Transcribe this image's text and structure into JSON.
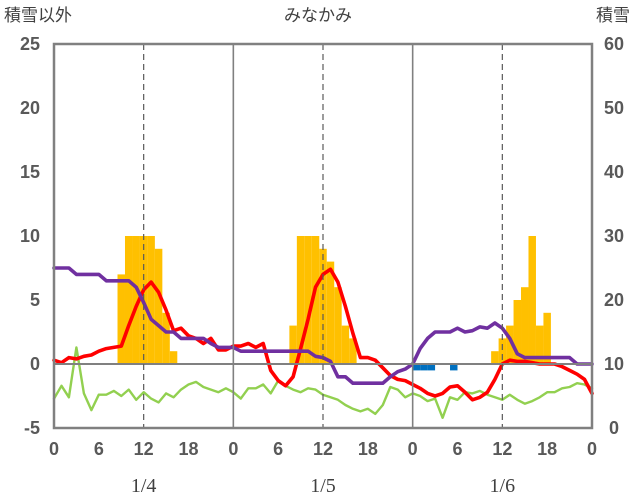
{
  "chart_data": {
    "type": "combo",
    "title": "みなかみ",
    "left_axis_label": "積雪以外",
    "right_axis_label": "積雪",
    "left_ylim": [
      -5,
      25
    ],
    "left_yticks": [
      "25",
      "20",
      "15",
      "10",
      "5",
      "0",
      "-5"
    ],
    "right_ylim": [
      0,
      60
    ],
    "right_yticks": [
      "60",
      "50",
      "40",
      "30",
      "20",
      "10",
      "0"
    ],
    "x_hours_total": 72,
    "x_ticks": [
      "0",
      "6",
      "12",
      "18",
      "0",
      "6",
      "12",
      "18",
      "0",
      "6",
      "12",
      "18",
      "0"
    ],
    "dates": [
      "1/4",
      "1/5",
      "1/6"
    ],
    "grid": "vertical dashed at 12:00 each day",
    "colors": {
      "bars_yellow": "#FFC000",
      "bars_blue": "#0070C0",
      "temperature": "#FF0000",
      "snow_depth": "#7030A0",
      "green_series": "#92D050"
    },
    "series": [
      {
        "color": "#FFC000",
        "axis": "left",
        "kind": "bar",
        "points": [
          [
            9,
            7
          ],
          [
            10,
            10
          ],
          [
            11,
            10
          ],
          [
            12,
            10
          ],
          [
            13,
            10
          ],
          [
            14,
            9
          ],
          [
            15,
            4
          ],
          [
            16,
            1
          ],
          [
            32,
            3
          ],
          [
            33,
            10
          ],
          [
            34,
            10
          ],
          [
            35,
            10
          ],
          [
            36,
            9
          ],
          [
            37,
            8
          ],
          [
            38,
            6
          ],
          [
            39,
            3
          ],
          [
            40,
            2
          ],
          [
            59,
            1
          ],
          [
            60,
            2
          ],
          [
            61,
            3
          ],
          [
            62,
            5
          ],
          [
            63,
            6
          ],
          [
            64,
            10
          ],
          [
            65,
            3
          ],
          [
            66,
            4
          ]
        ]
      },
      {
        "color": "#0070C0",
        "axis": "left",
        "kind": "bar",
        "points": [
          [
            48.5,
            -0.5
          ],
          [
            49.5,
            -0.5
          ],
          [
            50.5,
            -0.5
          ],
          [
            53.5,
            -0.5
          ]
        ]
      },
      {
        "color": "#FF0000",
        "axis": "left",
        "kind": "line",
        "x": [
          0,
          1,
          2,
          3,
          4,
          5,
          6,
          7,
          8,
          9,
          10,
          11,
          12,
          13,
          14,
          15,
          16,
          17,
          18,
          19,
          20,
          21,
          22,
          23,
          24,
          25,
          26,
          27,
          28,
          29,
          30,
          31,
          32,
          33,
          34,
          35,
          36,
          37,
          38,
          39,
          40,
          41,
          42,
          43,
          44,
          45,
          46,
          47,
          48,
          49,
          50,
          51,
          52,
          53,
          54,
          55,
          56,
          57,
          58,
          59,
          60,
          61,
          62,
          63,
          64,
          65,
          66,
          67,
          68,
          69,
          70,
          71,
          72
        ],
        "y": [
          0.3,
          0.1,
          0.5,
          0.4,
          0.6,
          0.7,
          1,
          1.2,
          1.3,
          1.4,
          3,
          4.5,
          5.8,
          6.4,
          5.6,
          4.2,
          2.6,
          2.8,
          2.2,
          2,
          1.6,
          2,
          1.1,
          1.1,
          1.4,
          1.4,
          1.6,
          1.3,
          1.6,
          -0.5,
          -1.3,
          -1.7,
          -1,
          1.2,
          3.5,
          6,
          7,
          7.4,
          6.4,
          4.5,
          2.4,
          0.5,
          0.5,
          0.3,
          -0.3,
          -0.9,
          -1.2,
          -1.3,
          -1.6,
          -1.9,
          -2.3,
          -2.5,
          -2.3,
          -1.8,
          -1.7,
          -2.2,
          -2.8,
          -2.6,
          -2.2,
          -1.2,
          0,
          0.3,
          0.2,
          0.2,
          0.1,
          0,
          0,
          0,
          -0.2,
          -0.5,
          -0.8,
          -1.2,
          -2.3
        ]
      },
      {
        "color": "#7030A0",
        "axis": "left",
        "kind": "line",
        "x": [
          0,
          1,
          2,
          3,
          4,
          5,
          6,
          7,
          8,
          9,
          10,
          11,
          12,
          13,
          14,
          15,
          16,
          17,
          18,
          19,
          20,
          21,
          22,
          23,
          24,
          25,
          26,
          27,
          28,
          29,
          30,
          31,
          32,
          33,
          34,
          35,
          36,
          37,
          38,
          39,
          40,
          41,
          42,
          43,
          44,
          45,
          46,
          47,
          48,
          49,
          50,
          51,
          52,
          53,
          54,
          55,
          56,
          57,
          58,
          59,
          60,
          61,
          62,
          63,
          64,
          65,
          66,
          67,
          68,
          69,
          70,
          71,
          72
        ],
        "y": [
          7.5,
          7.5,
          7.5,
          7,
          7,
          7,
          7,
          6.5,
          6.5,
          6.5,
          6.5,
          6,
          4.8,
          3.5,
          3,
          2.5,
          2.5,
          2,
          2,
          2,
          2,
          1.6,
          1.3,
          1.3,
          1.3,
          1,
          1,
          1,
          1,
          1,
          1,
          1,
          1,
          1,
          1,
          0.6,
          0.5,
          0.2,
          -1,
          -1,
          -1.5,
          -1.5,
          -1.5,
          -1.5,
          -1.5,
          -1,
          -0.6,
          -0.4,
          0,
          1.2,
          2,
          2.5,
          2.5,
          2.5,
          2.8,
          2.5,
          2.6,
          2.9,
          2.8,
          3.2,
          2.8,
          2,
          0.8,
          0.5,
          0.5,
          0.5,
          0.5,
          0.5,
          0.5,
          0.5,
          0,
          0,
          0
        ]
      },
      {
        "color": "#92D050",
        "axis": "left",
        "kind": "line",
        "x": [
          0,
          1,
          2,
          3,
          4,
          5,
          6,
          7,
          8,
          9,
          10,
          11,
          12,
          13,
          14,
          15,
          16,
          17,
          18,
          19,
          20,
          21,
          22,
          23,
          24,
          25,
          26,
          27,
          28,
          29,
          30,
          31,
          32,
          33,
          34,
          35,
          36,
          37,
          38,
          39,
          40,
          41,
          42,
          43,
          44,
          45,
          46,
          47,
          48,
          49,
          50,
          51,
          52,
          53,
          54,
          55,
          56,
          57,
          58,
          59,
          60,
          61,
          62,
          63,
          64,
          65,
          66,
          67,
          68,
          69,
          70,
          71,
          72
        ],
        "y": [
          -2.7,
          -1.7,
          -2.6,
          1.3,
          -2.3,
          -3.6,
          -2.4,
          -2.4,
          -2.1,
          -2.5,
          -2,
          -2.8,
          -2.2,
          -2.7,
          -3,
          -2.3,
          -2.6,
          -2,
          -1.6,
          -1.4,
          -1.8,
          -2,
          -2.2,
          -1.9,
          -2.2,
          -2.7,
          -1.9,
          -1.9,
          -1.6,
          -2.3,
          -1.3,
          -1.7,
          -2,
          -2.2,
          -1.9,
          -2,
          -2.4,
          -2.6,
          -2.8,
          -3.2,
          -3.5,
          -3.7,
          -3.5,
          -3.9,
          -3.2,
          -1.8,
          -2,
          -2.6,
          -2.3,
          -2.5,
          -2.9,
          -2.7,
          -4.2,
          -2.6,
          -2.8,
          -2.2,
          -2.3,
          -2.1,
          -2.4,
          -2.6,
          -2.8,
          -2.4,
          -2.8,
          -3.1,
          -2.9,
          -2.6,
          -2.2,
          -2.2,
          -1.9,
          -1.8,
          -1.5,
          -1.6,
          -1.9
        ]
      }
    ]
  }
}
